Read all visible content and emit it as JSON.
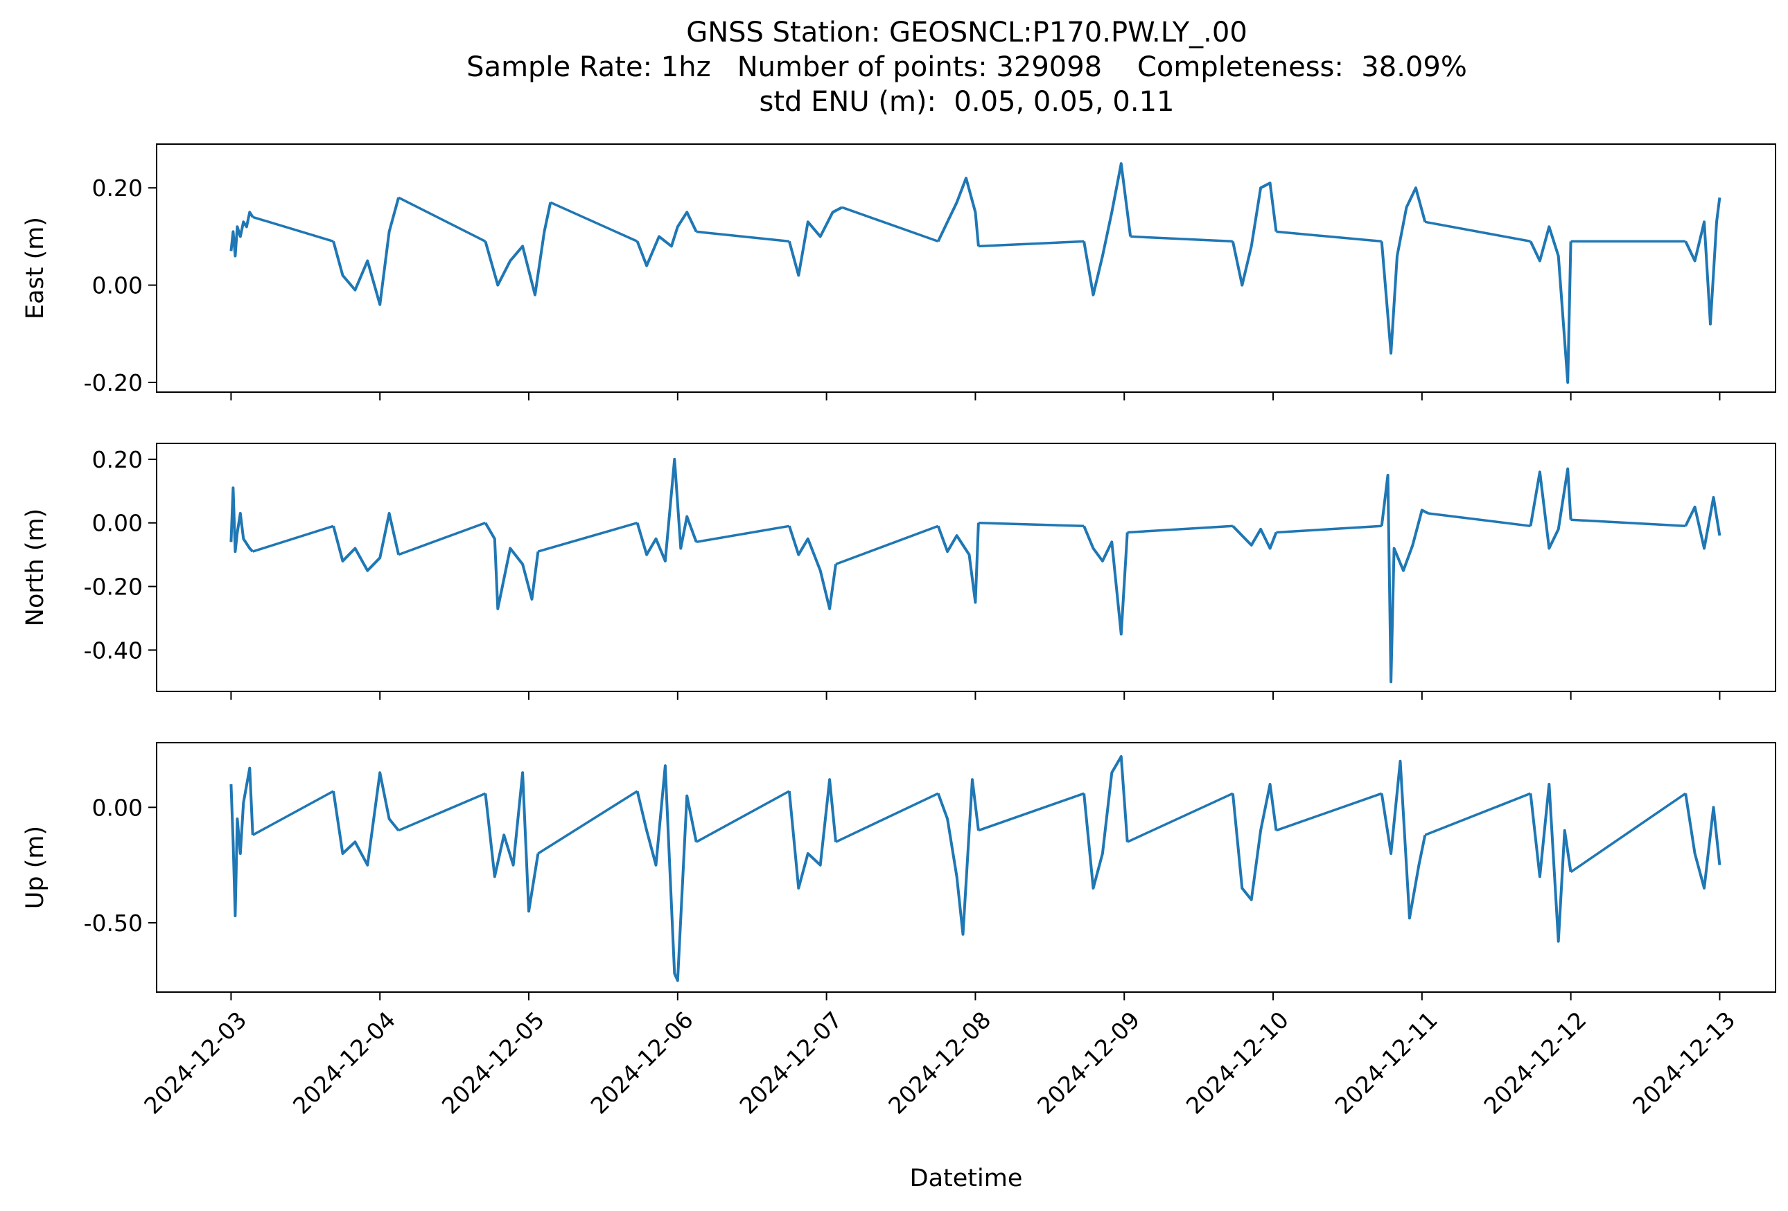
{
  "chart_data": {
    "type": "line",
    "title_lines": [
      "GNSS Station: GEOSNCL:P170.PW.LY_.00",
      "Sample Rate: 1hz   Number of points: 329098    Completeness:  38.09%",
      "std ENU (m):  0.05, 0.05, 0.11"
    ],
    "xlabel": "Datetime",
    "x_ticks": [
      "2024-12-03",
      "2024-12-04",
      "2024-12-05",
      "2024-12-06",
      "2024-12-07",
      "2024-12-08",
      "2024-12-09",
      "2024-12-10",
      "2024-12-11",
      "2024-12-12",
      "2024-12-13"
    ],
    "xlim": [
      "2024-12-02T12:00",
      "2024-12-13T09:00"
    ],
    "line_color": "#1f77b4",
    "shared_x": true,
    "grid": false,
    "panels": [
      {
        "ylabel": "East (m)",
        "ylim": [
          -0.22,
          0.29
        ],
        "y_ticks": [
          0.2,
          0.0,
          -0.2
        ],
        "y_tick_labels": [
          "0.20",
          "0.00",
          "-0.20"
        ],
        "series": [
          {
            "x": [
              "2024-12-03T00:00",
              "2024-12-03T00:20",
              "2024-12-03T00:40",
              "2024-12-03T01:00",
              "2024-12-03T01:30",
              "2024-12-03T02:00",
              "2024-12-03T02:30",
              "2024-12-03T03:00",
              "2024-12-03T03:30"
            ],
            "y": [
              0.07,
              0.11,
              0.06,
              0.12,
              0.1,
              0.13,
              0.12,
              0.15,
              0.14
            ]
          },
          {
            "x": [
              "2024-12-03T16:30",
              "2024-12-03T18:00",
              "2024-12-03T20:00",
              "2024-12-03T22:00",
              "2024-12-04T00:00",
              "2024-12-04T01:30",
              "2024-12-04T03:00"
            ],
            "y": [
              0.09,
              0.02,
              -0.01,
              0.05,
              -0.04,
              0.11,
              0.18
            ]
          },
          {
            "x": [
              "2024-12-04T17:00",
              "2024-12-04T19:00",
              "2024-12-04T21:00",
              "2024-12-04T23:00",
              "2024-12-05T01:00",
              "2024-12-05T02:30",
              "2024-12-05T03:30"
            ],
            "y": [
              0.09,
              0.0,
              0.05,
              0.08,
              -0.02,
              0.11,
              0.17
            ]
          },
          {
            "x": [
              "2024-12-05T17:30",
              "2024-12-05T19:00",
              "2024-12-05T21:00",
              "2024-12-05T23:00",
              "2024-12-06T00:00",
              "2024-12-06T01:30",
              "2024-12-06T03:00"
            ],
            "y": [
              0.09,
              0.04,
              0.1,
              0.08,
              0.12,
              0.15,
              0.11
            ]
          },
          {
            "x": [
              "2024-12-06T18:00",
              "2024-12-06T19:30",
              "2024-12-06T21:00",
              "2024-12-06T23:00",
              "2024-12-07T01:00",
              "2024-12-07T02:30"
            ],
            "y": [
              0.09,
              0.02,
              0.13,
              0.1,
              0.15,
              0.16
            ]
          },
          {
            "x": [
              "2024-12-07T18:00",
              "2024-12-07T19:30",
              "2024-12-07T21:00",
              "2024-12-07T22:30",
              "2024-12-08T00:00",
              "2024-12-08T00:30"
            ],
            "y": [
              0.09,
              0.13,
              0.17,
              0.22,
              0.15,
              0.08
            ]
          },
          {
            "x": [
              "2024-12-08T17:30",
              "2024-12-08T19:00",
              "2024-12-08T20:30",
              "2024-12-08T22:00",
              "2024-12-08T23:30",
              "2024-12-09T01:00"
            ],
            "y": [
              0.09,
              -0.02,
              0.06,
              0.15,
              0.25,
              0.1
            ]
          },
          {
            "x": [
              "2024-12-09T17:30",
              "2024-12-09T19:00",
              "2024-12-09T20:30",
              "2024-12-09T22:00",
              "2024-12-09T23:30",
              "2024-12-10T00:30"
            ],
            "y": [
              0.09,
              0.0,
              0.08,
              0.2,
              0.21,
              0.11
            ]
          },
          {
            "x": [
              "2024-12-10T17:30",
              "2024-12-10T19:00",
              "2024-12-10T20:00",
              "2024-12-10T21:30",
              "2024-12-10T23:00",
              "2024-12-11T00:30"
            ],
            "y": [
              0.09,
              -0.14,
              0.06,
              0.16,
              0.2,
              0.13
            ]
          },
          {
            "x": [
              "2024-12-11T17:30",
              "2024-12-11T19:00",
              "2024-12-11T20:30",
              "2024-12-11T22:00",
              "2024-12-11T23:30",
              "2024-12-12T00:00"
            ],
            "y": [
              0.09,
              0.05,
              0.12,
              0.06,
              -0.2,
              0.09
            ]
          },
          {
            "x": [
              "2024-12-12T18:30",
              "2024-12-12T20:00",
              "2024-12-12T21:30",
              "2024-12-12T22:30",
              "2024-12-12T23:30",
              "2024-12-13T00:00"
            ],
            "y": [
              0.09,
              0.05,
              0.13,
              -0.08,
              0.13,
              0.18
            ]
          }
        ]
      },
      {
        "ylabel": "North (m)",
        "ylim": [
          -0.53,
          0.25
        ],
        "y_ticks": [
          0.2,
          0.0,
          -0.2,
          -0.4
        ],
        "y_tick_labels": [
          "0.20",
          "0.00",
          "-0.20",
          "-0.40"
        ],
        "series": [
          {
            "x": [
              "2024-12-03T00:00",
              "2024-12-03T00:20",
              "2024-12-03T00:40",
              "2024-12-03T01:00",
              "2024-12-03T01:30",
              "2024-12-03T02:00",
              "2024-12-03T03:00",
              "2024-12-03T03:30"
            ],
            "y": [
              -0.06,
              0.11,
              -0.09,
              -0.03,
              0.03,
              -0.05,
              -0.08,
              -0.09
            ]
          },
          {
            "x": [
              "2024-12-03T16:30",
              "2024-12-03T18:00",
              "2024-12-03T20:00",
              "2024-12-03T22:00",
              "2024-12-04T00:00",
              "2024-12-04T01:30",
              "2024-12-04T03:00"
            ],
            "y": [
              -0.01,
              -0.12,
              -0.08,
              -0.15,
              -0.11,
              0.03,
              -0.1
            ]
          },
          {
            "x": [
              "2024-12-04T17:00",
              "2024-12-04T18:30",
              "2024-12-04T19:00",
              "2024-12-04T21:00",
              "2024-12-04T23:00",
              "2024-12-05T00:30",
              "2024-12-05T01:30"
            ],
            "y": [
              0.0,
              -0.05,
              -0.27,
              -0.08,
              -0.13,
              -0.24,
              -0.09
            ]
          },
          {
            "x": [
              "2024-12-05T17:30",
              "2024-12-05T19:00",
              "2024-12-05T20:30",
              "2024-12-05T22:00",
              "2024-12-05T23:30",
              "2024-12-06T00:30",
              "2024-12-06T01:30",
              "2024-12-06T03:00"
            ],
            "y": [
              0.0,
              -0.1,
              -0.05,
              -0.12,
              0.2,
              -0.08,
              0.02,
              -0.06
            ]
          },
          {
            "x": [
              "2024-12-06T18:00",
              "2024-12-06T19:30",
              "2024-12-06T21:00",
              "2024-12-06T23:00",
              "2024-12-07T00:30",
              "2024-12-07T01:30"
            ],
            "y": [
              -0.01,
              -0.1,
              -0.05,
              -0.15,
              -0.27,
              -0.13
            ]
          },
          {
            "x": [
              "2024-12-07T18:00",
              "2024-12-07T19:30",
              "2024-12-07T21:00",
              "2024-12-07T23:00",
              "2024-12-08T00:00",
              "2024-12-08T00:30"
            ],
            "y": [
              -0.01,
              -0.09,
              -0.04,
              -0.1,
              -0.25,
              0.0
            ]
          },
          {
            "x": [
              "2024-12-08T17:30",
              "2024-12-08T19:00",
              "2024-12-08T20:30",
              "2024-12-08T22:00",
              "2024-12-08T23:30",
              "2024-12-09T00:30"
            ],
            "y": [
              -0.01,
              -0.08,
              -0.12,
              -0.06,
              -0.35,
              -0.03
            ]
          },
          {
            "x": [
              "2024-12-09T17:30",
              "2024-12-09T19:00",
              "2024-12-09T20:30",
              "2024-12-09T22:00",
              "2024-12-09T23:30",
              "2024-12-10T00:30"
            ],
            "y": [
              -0.01,
              -0.04,
              -0.07,
              -0.02,
              -0.08,
              -0.03
            ]
          },
          {
            "x": [
              "2024-12-10T17:30",
              "2024-12-10T18:30",
              "2024-12-10T19:00",
              "2024-12-10T19:30",
              "2024-12-10T21:00",
              "2024-12-10T22:30",
              "2024-12-11T00:00",
              "2024-12-11T01:00"
            ],
            "y": [
              -0.01,
              0.15,
              -0.5,
              -0.08,
              -0.15,
              -0.07,
              0.04,
              0.03
            ]
          },
          {
            "x": [
              "2024-12-11T17:30",
              "2024-12-11T19:00",
              "2024-12-11T20:30",
              "2024-12-11T22:00",
              "2024-12-11T23:30",
              "2024-12-12T00:00"
            ],
            "y": [
              -0.01,
              0.16,
              -0.08,
              -0.02,
              0.17,
              0.01
            ]
          },
          {
            "x": [
              "2024-12-12T18:30",
              "2024-12-12T20:00",
              "2024-12-12T21:30",
              "2024-12-12T23:00",
              "2024-12-13T00:00"
            ],
            "y": [
              -0.01,
              0.05,
              -0.08,
              0.08,
              -0.04
            ]
          }
        ]
      },
      {
        "ylabel": "Up (m)",
        "ylim": [
          -0.8,
          0.28
        ],
        "y_ticks": [
          0.0,
          -0.5
        ],
        "y_tick_labels": [
          "0.00",
          "-0.50"
        ],
        "series": [
          {
            "x": [
              "2024-12-03T00:00",
              "2024-12-03T00:20",
              "2024-12-03T00:40",
              "2024-12-03T01:00",
              "2024-12-03T01:30",
              "2024-12-03T02:00",
              "2024-12-03T03:00",
              "2024-12-03T03:30"
            ],
            "y": [
              0.1,
              -0.15,
              -0.47,
              -0.05,
              -0.2,
              0.02,
              0.17,
              -0.12
            ]
          },
          {
            "x": [
              "2024-12-03T16:30",
              "2024-12-03T18:00",
              "2024-12-03T20:00",
              "2024-12-03T22:00",
              "2024-12-04T00:00",
              "2024-12-04T01:30",
              "2024-12-04T03:00"
            ],
            "y": [
              0.07,
              -0.2,
              -0.15,
              -0.25,
              0.15,
              -0.05,
              -0.1
            ]
          },
          {
            "x": [
              "2024-12-04T17:00",
              "2024-12-04T18:30",
              "2024-12-04T20:00",
              "2024-12-04T21:30",
              "2024-12-04T23:00",
              "2024-12-05T00:00",
              "2024-12-05T01:30"
            ],
            "y": [
              0.06,
              -0.3,
              -0.12,
              -0.25,
              0.15,
              -0.45,
              -0.2
            ]
          },
          {
            "x": [
              "2024-12-05T17:30",
              "2024-12-05T19:00",
              "2024-12-05T20:30",
              "2024-12-05T22:00",
              "2024-12-05T23:30",
              "2024-12-06T00:00",
              "2024-12-06T01:30",
              "2024-12-06T03:00"
            ],
            "y": [
              0.07,
              -0.1,
              -0.25,
              0.18,
              -0.72,
              -0.75,
              0.05,
              -0.15
            ]
          },
          {
            "x": [
              "2024-12-06T18:00",
              "2024-12-06T19:30",
              "2024-12-06T21:00",
              "2024-12-06T23:00",
              "2024-12-07T00:30",
              "2024-12-07T01:30"
            ],
            "y": [
              0.07,
              -0.35,
              -0.2,
              -0.25,
              0.12,
              -0.15
            ]
          },
          {
            "x": [
              "2024-12-07T18:00",
              "2024-12-07T19:30",
              "2024-12-07T21:00",
              "2024-12-07T22:00",
              "2024-12-07T23:30",
              "2024-12-08T00:30"
            ],
            "y": [
              0.06,
              -0.05,
              -0.3,
              -0.55,
              0.12,
              -0.1
            ]
          },
          {
            "x": [
              "2024-12-08T17:30",
              "2024-12-08T19:00",
              "2024-12-08T20:30",
              "2024-12-08T22:00",
              "2024-12-08T23:30",
              "2024-12-09T00:30"
            ],
            "y": [
              0.06,
              -0.35,
              -0.2,
              0.15,
              0.22,
              -0.15
            ]
          },
          {
            "x": [
              "2024-12-09T17:30",
              "2024-12-09T19:00",
              "2024-12-09T20:30",
              "2024-12-09T22:00",
              "2024-12-09T23:30",
              "2024-12-10T00:30"
            ],
            "y": [
              0.06,
              -0.35,
              -0.4,
              -0.1,
              0.1,
              -0.1
            ]
          },
          {
            "x": [
              "2024-12-10T17:30",
              "2024-12-10T19:00",
              "2024-12-10T20:30",
              "2024-12-10T22:00",
              "2024-12-10T23:30",
              "2024-12-11T00:30"
            ],
            "y": [
              0.06,
              -0.2,
              0.2,
              -0.48,
              -0.25,
              -0.12
            ]
          },
          {
            "x": [
              "2024-12-11T17:30",
              "2024-12-11T19:00",
              "2024-12-11T20:30",
              "2024-12-11T22:00",
              "2024-12-11T23:00",
              "2024-12-12T00:00"
            ],
            "y": [
              0.06,
              -0.3,
              0.1,
              -0.58,
              -0.1,
              -0.28
            ]
          },
          {
            "x": [
              "2024-12-12T18:30",
              "2024-12-12T20:00",
              "2024-12-12T21:30",
              "2024-12-12T23:00",
              "2024-12-13T00:00"
            ],
            "y": [
              0.06,
              -0.2,
              -0.35,
              0.0,
              -0.25
            ]
          }
        ]
      }
    ]
  }
}
